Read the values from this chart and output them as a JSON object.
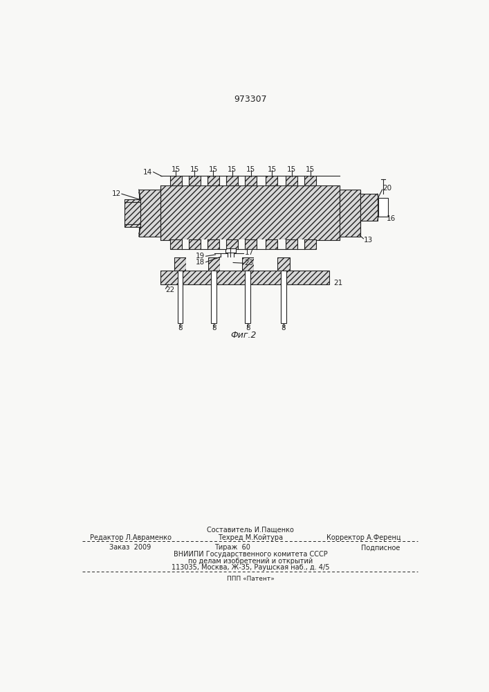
{
  "patent_number": "973307",
  "figure_label": "Фиг.2",
  "bg": "#f8f8f6",
  "lc": "#222222",
  "footer_sestavitel": "Составитель И.Пащенко",
  "footer_redaktor": "Редактор Л.Авраменко",
  "footer_tehred": "Техред М.Койтура",
  "footer_korrektor": "Корректор А.Ференц",
  "footer_zakaz": "Заказ  2009",
  "footer_tirazh": "Тираж  60",
  "footer_podpisnoe": "Подписное",
  "footer_vniipи": "ВНИИПИ Государственного комитета СССР",
  "footer_po": "по делам изобретений и открытий",
  "footer_addr": "113035, Москва, Ж-35, Раушская наб., д. 4/5",
  "footer_ppp": "ППП «Патент»"
}
